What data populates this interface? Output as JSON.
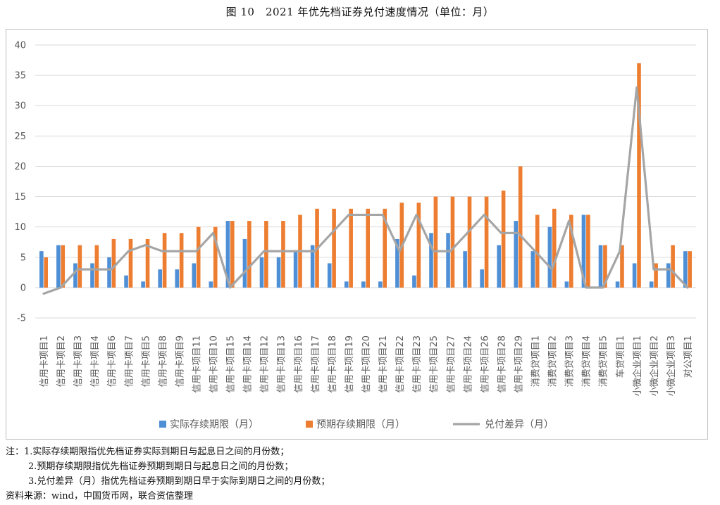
{
  "figure_title": "图 10　2021 年优先档证券兑付速度情况（单位：月）",
  "chart_data": {
    "type": "bar",
    "categories": [
      "信用卡项目1",
      "信用卡项目2",
      "信用卡项目3",
      "信用卡项目4",
      "信用卡项目6",
      "信用卡项目7",
      "信用卡项目5",
      "信用卡项目8",
      "信用卡项目9",
      "信用卡项目11",
      "信用卡项目10",
      "信用卡项目15",
      "信用卡项目14",
      "信用卡项目12",
      "信用卡项目13",
      "信用卡项目16",
      "信用卡项目17",
      "信用卡项目18",
      "信用卡项目19",
      "信用卡项目20",
      "信用卡项目21",
      "信用卡项目22",
      "信用卡项目23",
      "信用卡项目25",
      "信用卡项目27",
      "信用卡项目24",
      "信用卡项目26",
      "信用卡项目28",
      "信用卡项目29",
      "消费贷项目1",
      "消费贷项目2",
      "消费贷项目3",
      "消费贷项目4",
      "消费贷项目5",
      "车贷项目1",
      "小微企业项目1",
      "小微企业项目2",
      "小微企业项目3",
      "对公项目1"
    ],
    "series": [
      {
        "name": "实际存续期限（月）",
        "kind": "bar",
        "color": "#4f8fd6",
        "values": [
          6,
          7,
          4,
          4,
          5,
          2,
          1,
          3,
          3,
          4,
          1,
          11,
          8,
          5,
          5,
          6,
          7,
          4,
          1,
          1,
          1,
          8,
          2,
          9,
          9,
          6,
          3,
          7,
          11,
          6,
          10,
          1,
          12,
          7,
          1,
          4,
          1,
          4,
          6
        ]
      },
      {
        "name": "预期存续期限（月）",
        "kind": "bar",
        "color": "#ed7d31",
        "values": [
          5,
          7,
          7,
          7,
          8,
          8,
          8,
          9,
          9,
          10,
          10,
          11,
          11,
          11,
          11,
          12,
          13,
          13,
          13,
          13,
          13,
          14,
          14,
          15,
          15,
          15,
          15,
          16,
          20,
          12,
          13,
          12,
          12,
          7,
          7,
          37,
          4,
          7,
          6
        ]
      },
      {
        "name": "兑付差异（月）",
        "kind": "line",
        "color": "#a5a5a5",
        "values": [
          -1,
          0,
          3,
          3,
          3,
          6,
          7,
          6,
          6,
          6,
          9,
          0,
          3,
          6,
          6,
          6,
          6,
          9,
          12,
          12,
          12,
          6,
          12,
          6,
          6,
          9,
          12,
          9,
          9,
          6,
          3,
          11,
          0,
          0,
          6,
          33,
          3,
          3,
          0
        ]
      }
    ],
    "ylim": [
      -5,
      40
    ],
    "yticks": [
      "-5",
      "0",
      "5",
      "10",
      "15",
      "20",
      "25",
      "30",
      "35",
      "40"
    ],
    "legend_position": "bottom",
    "grid": true
  },
  "notes": {
    "line1": "注：1.实际存续期限指优先档证券实际到期日与起息日之间的月份数；",
    "line2": "2.预期存续期限指优先档证券预期到期日与起息日之间的月份数；",
    "line3": "3.兑付差异（月）指优先档证券预期到期日早于实际到期日之间的月份数；",
    "source": "资料来源：wind，中国货币网，联合资信整理"
  }
}
